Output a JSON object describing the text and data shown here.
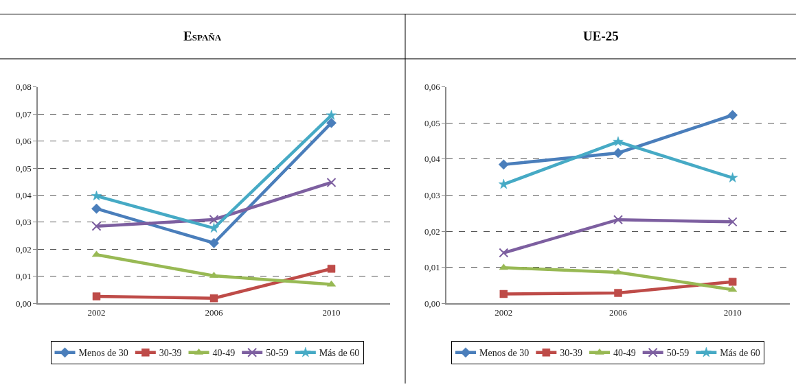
{
  "chart_data": [
    {
      "type": "line",
      "title": "España",
      "categories": [
        "2002",
        "2006",
        "2010"
      ],
      "ylim": [
        0,
        0.08
      ],
      "yticks": [
        {
          "value": 0,
          "label": "0,00"
        },
        {
          "value": 0.01,
          "label": "0,01"
        },
        {
          "value": 0.02,
          "label": "0,02"
        },
        {
          "value": 0.03,
          "label": "0,03"
        },
        {
          "value": 0.04,
          "label": "0,04"
        },
        {
          "value": 0.05,
          "label": "0,05"
        },
        {
          "value": 0.06,
          "label": "0,06"
        },
        {
          "value": 0.07,
          "label": "0,07"
        },
        {
          "value": 0.08,
          "label": "0,08"
        }
      ],
      "grid": "y",
      "legend": "bottom",
      "line_style": "solid",
      "series": [
        {
          "name": "Menos de 30",
          "color": "#4a7ebb",
          "marker": "diamond",
          "values": [
            0.035,
            0.0223,
            0.0667
          ]
        },
        {
          "name": "30-39",
          "color": "#be4b48",
          "marker": "square",
          "values": [
            0.0026,
            0.0019,
            0.0128
          ]
        },
        {
          "name": "40-49",
          "color": "#98b954",
          "marker": "triangle",
          "values": [
            0.018,
            0.0102,
            0.007
          ]
        },
        {
          "name": "50-59",
          "color": "#7d5fa0",
          "marker": "cross",
          "values": [
            0.0285,
            0.031,
            0.0447
          ]
        },
        {
          "name": "Más de 60",
          "color": "#46aac5",
          "marker": "star",
          "values": [
            0.0397,
            0.0278,
            0.0695
          ]
        }
      ]
    },
    {
      "type": "line",
      "title": "UE-25",
      "categories": [
        "2002",
        "2006",
        "2010"
      ],
      "ylim": [
        0,
        0.06
      ],
      "yticks": [
        {
          "value": 0,
          "label": "0,00"
        },
        {
          "value": 0.01,
          "label": "0,01"
        },
        {
          "value": 0.02,
          "label": "0,02"
        },
        {
          "value": 0.03,
          "label": "0,03"
        },
        {
          "value": 0.04,
          "label": "0,04"
        },
        {
          "value": 0.05,
          "label": "0,05"
        },
        {
          "value": 0.06,
          "label": "0,06"
        }
      ],
      "grid": "y",
      "legend": "bottom",
      "line_style": "solid",
      "series": [
        {
          "name": "Menos de 30",
          "color": "#4a7ebb",
          "marker": "diamond",
          "values": [
            0.0385,
            0.0417,
            0.0522
          ]
        },
        {
          "name": "30-39",
          "color": "#be4b48",
          "marker": "square",
          "values": [
            0.0026,
            0.0029,
            0.006
          ]
        },
        {
          "name": "40-49",
          "color": "#98b954",
          "marker": "triangle",
          "values": [
            0.0099,
            0.0086,
            0.0038
          ]
        },
        {
          "name": "50-59",
          "color": "#7d5fa0",
          "marker": "cross",
          "values": [
            0.014,
            0.0232,
            0.0226
          ]
        },
        {
          "name": "Más de 60",
          "color": "#46aac5",
          "marker": "star",
          "values": [
            0.033,
            0.0448,
            0.0348
          ]
        }
      ]
    }
  ]
}
